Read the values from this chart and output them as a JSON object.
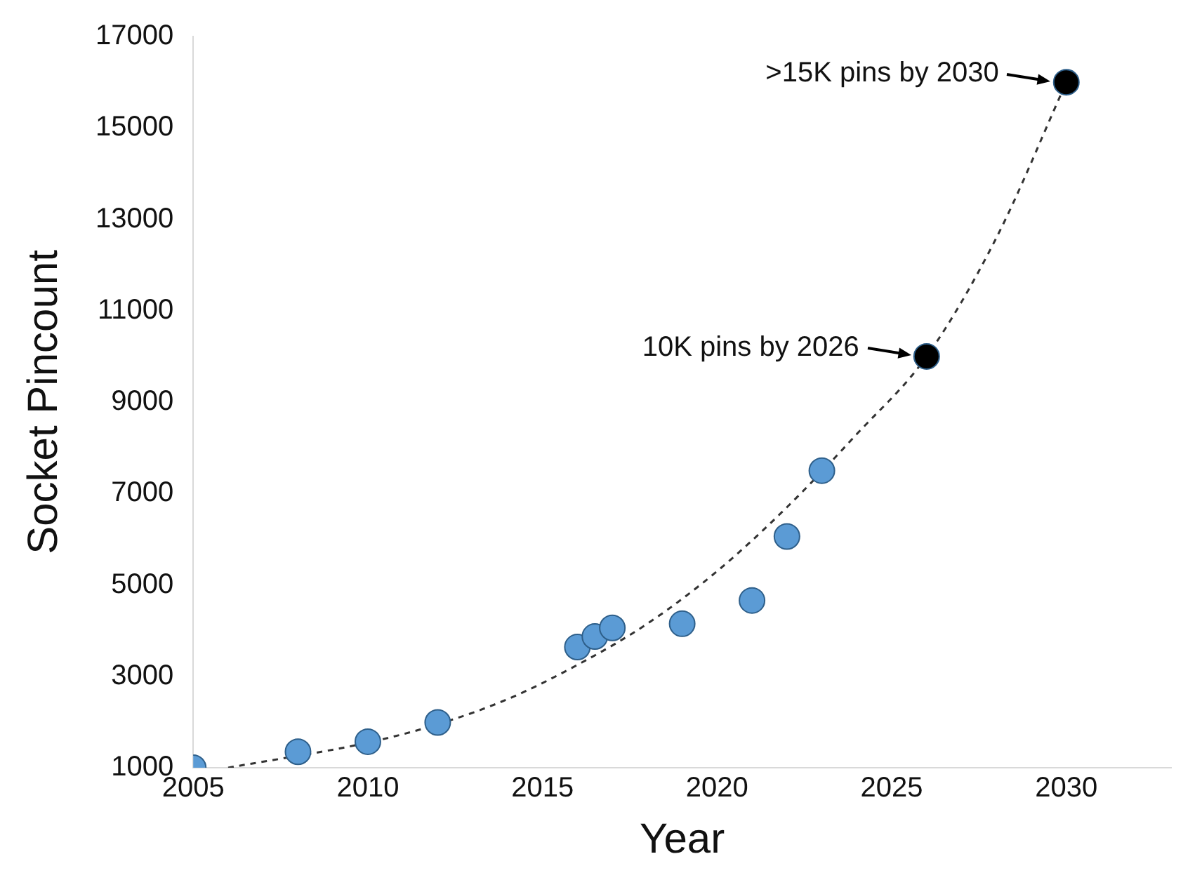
{
  "chart_data": {
    "type": "scatter",
    "xlabel": "Year",
    "ylabel": "Socket Pincount",
    "xlim": [
      2005,
      2033
    ],
    "ylim": [
      1000,
      17000
    ],
    "xticks": [
      2005,
      2010,
      2015,
      2020,
      2025,
      2030
    ],
    "yticks": [
      1000,
      3000,
      5000,
      7000,
      9000,
      11000,
      13000,
      15000,
      17000
    ],
    "grid": false,
    "legend": false,
    "marker": "circle",
    "series": [
      {
        "type": "line",
        "color": "#333333",
        "line_style": "dashed",
        "marker": "none",
        "x": [
          2006,
          2010,
          2012,
          2014,
          2016,
          2018,
          2020,
          2022,
          2024,
          2026,
          2028,
          2030
        ],
        "values": [
          1000,
          1550,
          1950,
          2500,
          3250,
          4150,
          5300,
          6700,
          8300,
          10000,
          12600,
          16000
        ]
      },
      {
        "type": "scatter",
        "color": "#5b9bd5",
        "x": [
          2005,
          2008,
          2010,
          2012,
          2016,
          2016.5,
          2017,
          2019,
          2021,
          2022,
          2023
        ],
        "values": [
          1000,
          1350,
          1570,
          1990,
          3640,
          3870,
          4060,
          4150,
          4660,
          6060,
          7500
        ]
      },
      {
        "type": "scatter",
        "color": "#000000",
        "x": [
          2026,
          2030
        ],
        "values": [
          10000,
          16000
        ]
      }
    ],
    "annotations": [
      {
        "text": "10K pins by 2026",
        "x": 2026,
        "y": 10000
      },
      {
        "text": ">15K pins by 2030",
        "x": 2030,
        "y": 16000
      }
    ]
  }
}
